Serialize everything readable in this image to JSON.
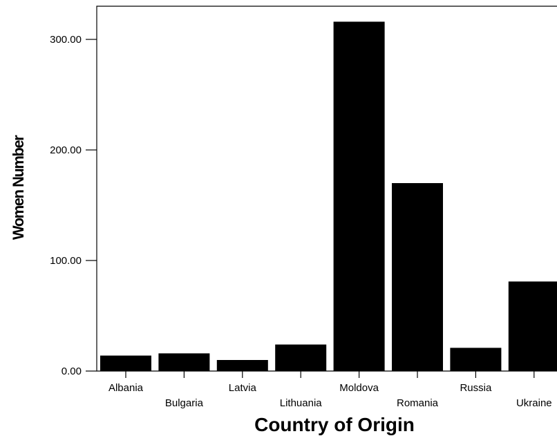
{
  "chart_data": {
    "type": "bar",
    "title": "",
    "xlabel": "Country of Origin",
    "ylabel": "Women Number",
    "categories": [
      "Albania",
      "Bulgaria",
      "Latvia",
      "Lithuania",
      "Moldova",
      "Romania",
      "Russia",
      "Ukraine"
    ],
    "values": [
      14,
      16,
      10,
      24,
      316,
      170,
      21,
      81
    ],
    "y_ticks": [
      "0.00",
      "100.00",
      "200.00",
      "300.00"
    ],
    "ylim": [
      0,
      330
    ],
    "grid": false,
    "legend": "none",
    "bar_color": "#000000"
  }
}
